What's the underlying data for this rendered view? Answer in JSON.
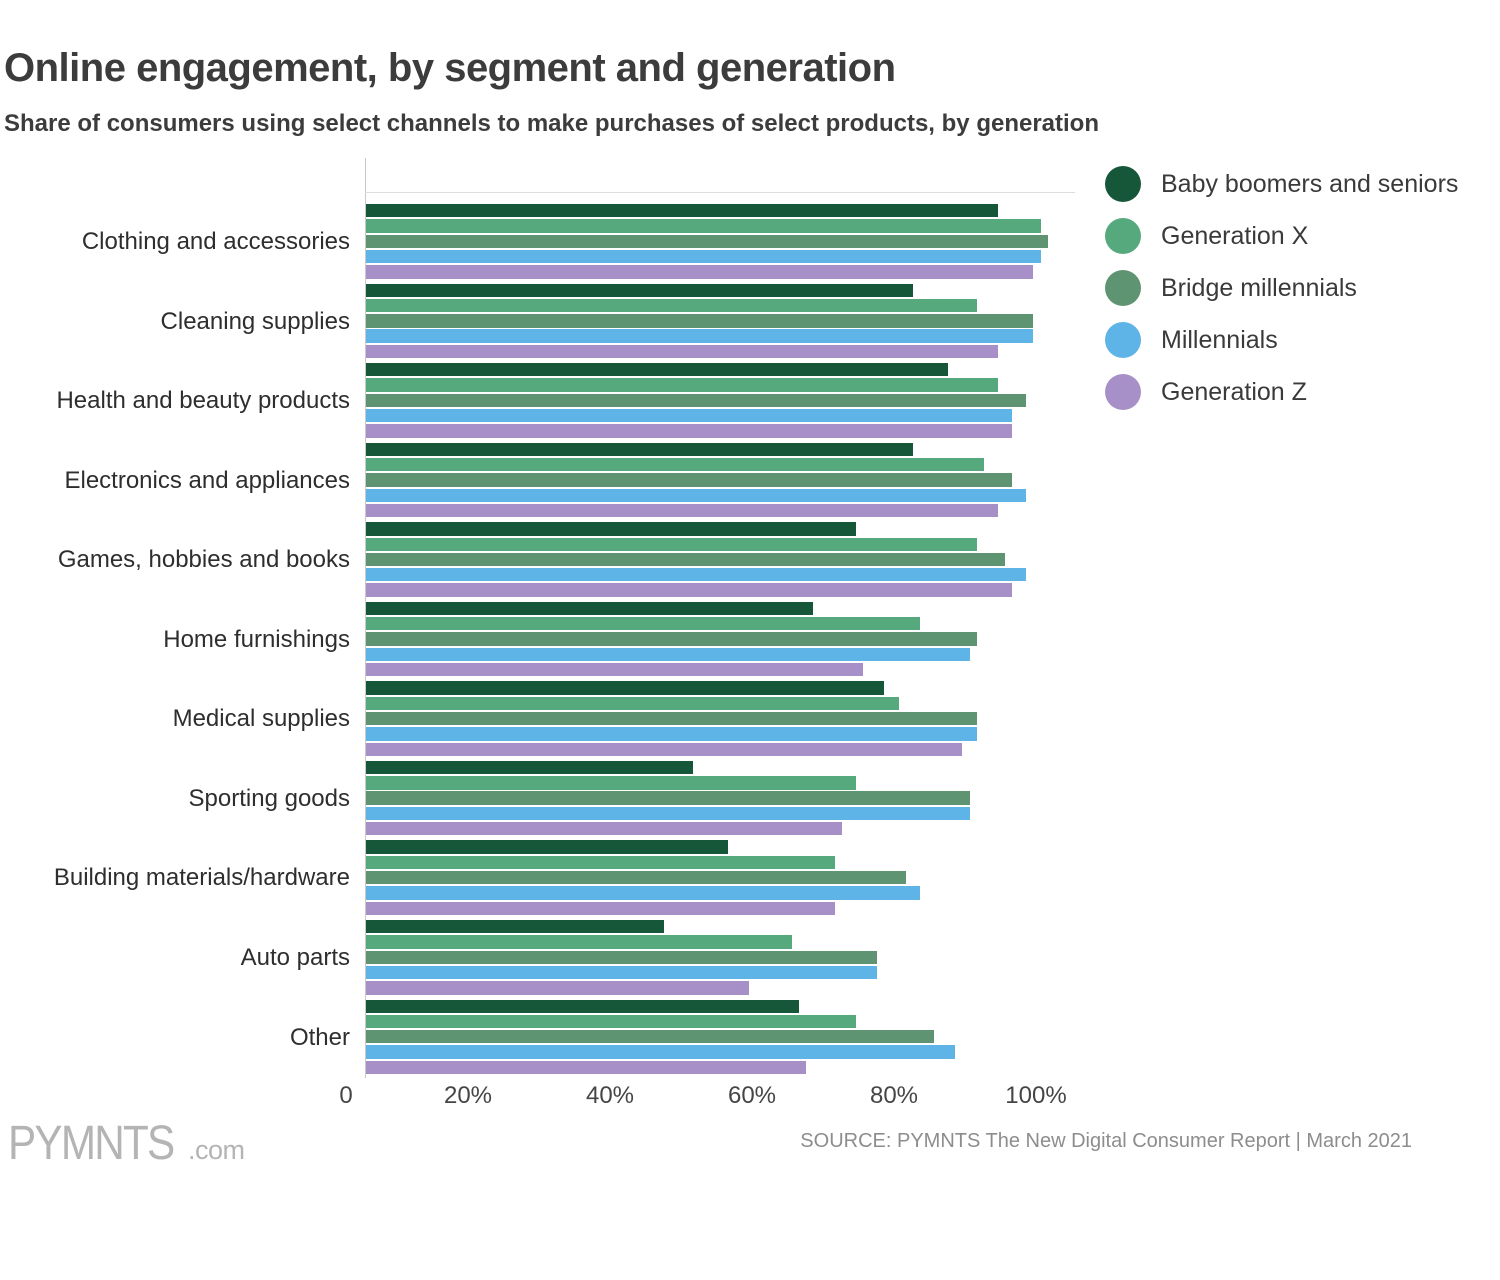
{
  "title": "Online engagement, by segment and generation",
  "subtitle": "Share of consumers using select channels to make purchases of select products, by generation",
  "footer": {
    "logo_text": "PYMNTS",
    "logo_suffix": ".com",
    "source": "SOURCE: PYMNTS The New Digital Consumer Report  |  March 2021"
  },
  "colors": {
    "baby_boomers": "#175739",
    "generation_x": "#55a97c",
    "bridge_millennials": "#5f9472",
    "millennials": "#5eb4e7",
    "generation_z": "#a78fc7",
    "axis_line": "#c9c9c9",
    "text_dark": "#3c3c3c",
    "text_source": "#8d8d8d"
  },
  "chart_data": {
    "type": "bar",
    "orientation": "horizontal",
    "title": "Online engagement, by segment and generation",
    "subtitle": "Share of consumers using select channels to make purchases of select products, by generation",
    "categories": [
      "Clothing and accessories",
      "Cleaning supplies",
      "Health and beauty products",
      "Electronics and appliances",
      "Games, hobbies and books",
      "Home furnishings",
      "Medical supplies",
      "Sporting goods",
      "Building materials/hardware",
      "Auto parts",
      "Other"
    ],
    "series": [
      {
        "name": "Baby boomers and seniors",
        "color": "#175739",
        "values": [
          89,
          77,
          82,
          77,
          69,
          63,
          73,
          46,
          51,
          42,
          61
        ]
      },
      {
        "name": "Generation X",
        "color": "#55a97c",
        "values": [
          95,
          86,
          89,
          87,
          86,
          78,
          75,
          69,
          66,
          60,
          69
        ]
      },
      {
        "name": "Bridge millennials",
        "color": "#5f9472",
        "values": [
          96,
          94,
          93,
          91,
          90,
          86,
          86,
          85,
          76,
          72,
          80
        ]
      },
      {
        "name": "Millennials",
        "color": "#5eb4e7",
        "values": [
          95,
          94,
          91,
          93,
          93,
          85,
          86,
          85,
          78,
          72,
          83
        ]
      },
      {
        "name": "Generation Z",
        "color": "#a78fc7",
        "values": [
          94,
          89,
          91,
          89,
          91,
          70,
          84,
          67,
          66,
          54,
          62
        ]
      }
    ],
    "xlim": [
      0,
      100
    ],
    "xtick_labels": [
      "0",
      "20%",
      "40%",
      "60%",
      "80%",
      "100%"
    ],
    "unit": "percent",
    "grid": false,
    "legend_position": "top-right"
  }
}
